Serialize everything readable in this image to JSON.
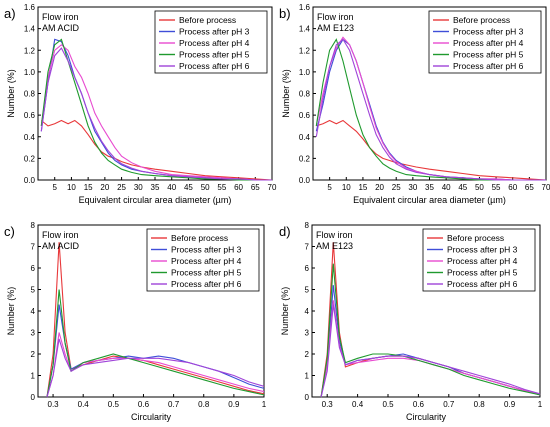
{
  "figure": {
    "panel_letters": [
      "a)",
      "b)",
      "c)",
      "d)"
    ]
  },
  "chart_data": [
    {
      "panel": "a)",
      "type": "line",
      "annotation": [
        "Flow iron",
        "AM ACID"
      ],
      "xlabel": "Equivalent circular area diameter (µm)",
      "ylabel": "Number (%)",
      "xlim": [
        0,
        70
      ],
      "ylim": [
        0,
        1.6
      ],
      "xticks": [
        5,
        10,
        15,
        20,
        25,
        30,
        35,
        40,
        45,
        50,
        55,
        60,
        65,
        70
      ],
      "yticks": [
        0.0,
        0.2,
        0.4,
        0.6,
        0.8,
        1.0,
        1.2,
        1.4,
        1.6
      ],
      "legend_position": "top-right",
      "x": [
        1,
        3,
        5,
        7,
        9,
        11,
        13,
        15,
        17,
        19,
        21,
        23,
        25,
        28,
        31,
        35,
        40,
        45,
        50,
        55,
        60,
        65,
        70
      ],
      "series": [
        {
          "name": "Before process",
          "color": "#e8383a",
          "values": [
            0.55,
            0.5,
            0.52,
            0.55,
            0.52,
            0.55,
            0.5,
            0.42,
            0.33,
            0.26,
            0.22,
            0.2,
            0.17,
            0.14,
            0.12,
            0.1,
            0.08,
            0.06,
            0.04,
            0.03,
            0.02,
            0.01,
            0.0
          ]
        },
        {
          "name": "Process after pH 3",
          "color": "#3f4ed8",
          "values": [
            0.45,
            0.9,
            1.3,
            1.28,
            1.15,
            0.95,
            0.8,
            0.62,
            0.45,
            0.35,
            0.25,
            0.18,
            0.14,
            0.1,
            0.08,
            0.06,
            0.04,
            0.03,
            0.02,
            0.01,
            0.01,
            0.0,
            0.0
          ]
        },
        {
          "name": "Process after pH 4",
          "color": "#e84bd0",
          "values": [
            0.5,
            0.95,
            1.2,
            1.25,
            1.2,
            1.05,
            0.95,
            0.8,
            0.62,
            0.5,
            0.4,
            0.3,
            0.22,
            0.16,
            0.12,
            0.08,
            0.05,
            0.04,
            0.03,
            0.02,
            0.01,
            0.0,
            0.0
          ]
        },
        {
          "name": "Process after pH 5",
          "color": "#1f9a2e",
          "values": [
            0.5,
            1.0,
            1.25,
            1.3,
            1.1,
            0.9,
            0.7,
            0.5,
            0.35,
            0.25,
            0.18,
            0.14,
            0.1,
            0.07,
            0.05,
            0.04,
            0.03,
            0.02,
            0.01,
            0.01,
            0.0,
            0.0,
            0.0
          ]
        },
        {
          "name": "Process after pH 6",
          "color": "#a044d9",
          "values": [
            0.45,
            0.9,
            1.15,
            1.22,
            1.1,
            0.95,
            0.8,
            0.62,
            0.48,
            0.36,
            0.27,
            0.2,
            0.15,
            0.11,
            0.08,
            0.06,
            0.04,
            0.03,
            0.02,
            0.01,
            0.01,
            0.0,
            0.0
          ]
        }
      ]
    },
    {
      "panel": "b)",
      "type": "line",
      "annotation": [
        "Flow iron",
        "AM E123"
      ],
      "xlabel": "Equivalent circular area diameter (µm)",
      "ylabel": "Number (%)",
      "xlim": [
        0,
        70
      ],
      "ylim": [
        0,
        1.6
      ],
      "xticks": [
        5,
        10,
        15,
        20,
        25,
        30,
        35,
        40,
        45,
        50,
        55,
        60,
        65,
        70
      ],
      "yticks": [
        0.0,
        0.2,
        0.4,
        0.6,
        0.8,
        1.0,
        1.2,
        1.4,
        1.6
      ],
      "legend_position": "top-right",
      "x": [
        1,
        3,
        5,
        7,
        9,
        11,
        13,
        15,
        17,
        19,
        21,
        23,
        25,
        28,
        31,
        35,
        40,
        45,
        50,
        55,
        60,
        65,
        70
      ],
      "series": [
        {
          "name": "Before process",
          "color": "#e8383a",
          "values": [
            0.5,
            0.52,
            0.55,
            0.52,
            0.55,
            0.5,
            0.45,
            0.38,
            0.3,
            0.24,
            0.2,
            0.18,
            0.16,
            0.14,
            0.12,
            0.1,
            0.08,
            0.06,
            0.04,
            0.03,
            0.02,
            0.01,
            0.0
          ]
        },
        {
          "name": "Process after pH 3",
          "color": "#3f4ed8",
          "values": [
            0.45,
            0.7,
            1.0,
            1.2,
            1.3,
            1.25,
            1.1,
            0.9,
            0.7,
            0.5,
            0.35,
            0.25,
            0.18,
            0.12,
            0.08,
            0.05,
            0.03,
            0.02,
            0.01,
            0.01,
            0.0,
            0.0,
            0.0
          ]
        },
        {
          "name": "Process after pH 4",
          "color": "#e84bd0",
          "values": [
            0.5,
            0.8,
            1.05,
            1.22,
            1.32,
            1.25,
            1.1,
            0.9,
            0.68,
            0.48,
            0.34,
            0.24,
            0.17,
            0.11,
            0.08,
            0.05,
            0.03,
            0.02,
            0.01,
            0.01,
            0.0,
            0.0,
            0.0
          ]
        },
        {
          "name": "Process after pH 5",
          "color": "#1f9a2e",
          "values": [
            0.5,
            0.9,
            1.2,
            1.3,
            1.1,
            0.85,
            0.6,
            0.42,
            0.3,
            0.22,
            0.15,
            0.11,
            0.08,
            0.05,
            0.04,
            0.03,
            0.02,
            0.01,
            0.0,
            0.0,
            0.0,
            0.0,
            0.0
          ]
        },
        {
          "name": "Process after pH 6",
          "color": "#a044d9",
          "values": [
            0.4,
            0.75,
            1.05,
            1.25,
            1.3,
            1.2,
            1.0,
            0.8,
            0.6,
            0.42,
            0.3,
            0.21,
            0.15,
            0.1,
            0.07,
            0.05,
            0.03,
            0.02,
            0.01,
            0.0,
            0.0,
            0.0,
            0.0
          ]
        }
      ]
    },
    {
      "panel": "c)",
      "type": "line",
      "annotation": [
        "Flow iron",
        "AM ACID"
      ],
      "xlabel": "Circularity",
      "ylabel": "Number (%)",
      "xlim": [
        0.25,
        1.0
      ],
      "ylim": [
        0,
        8
      ],
      "xticks": [
        0.3,
        0.4,
        0.5,
        0.6,
        0.7,
        0.8,
        0.9,
        1.0
      ],
      "yticks": [
        0,
        1,
        2,
        3,
        4,
        5,
        6,
        7,
        8
      ],
      "legend_position": "top-right",
      "x": [
        0.28,
        0.3,
        0.32,
        0.34,
        0.36,
        0.4,
        0.45,
        0.5,
        0.55,
        0.6,
        0.65,
        0.7,
        0.75,
        0.8,
        0.85,
        0.9,
        0.95,
        1.0
      ],
      "series": [
        {
          "name": "Before process",
          "color": "#e8383a",
          "values": [
            0.0,
            2.0,
            7.2,
            3.0,
            1.3,
            1.5,
            1.7,
            1.9,
            1.8,
            1.7,
            1.5,
            1.3,
            1.1,
            0.9,
            0.7,
            0.5,
            0.3,
            0.15
          ]
        },
        {
          "name": "Process after pH 3",
          "color": "#3f4ed8",
          "values": [
            0.0,
            1.5,
            4.3,
            2.5,
            1.3,
            1.6,
            1.7,
            1.8,
            1.9,
            1.8,
            1.9,
            1.8,
            1.6,
            1.4,
            1.2,
            0.9,
            0.6,
            0.4
          ]
        },
        {
          "name": "Process after pH 4",
          "color": "#e84bd0",
          "values": [
            0.0,
            1.0,
            3.0,
            2.0,
            1.2,
            1.6,
            1.7,
            1.8,
            1.8,
            1.7,
            1.6,
            1.4,
            1.2,
            1.0,
            0.8,
            0.6,
            0.4,
            0.25
          ]
        },
        {
          "name": "Process after pH 5",
          "color": "#1f9a2e",
          "values": [
            0.0,
            1.5,
            5.0,
            2.5,
            1.2,
            1.6,
            1.8,
            2.0,
            1.8,
            1.6,
            1.4,
            1.2,
            1.0,
            0.8,
            0.6,
            0.4,
            0.25,
            0.1
          ]
        },
        {
          "name": "Process after pH 6",
          "color": "#a044d9",
          "values": [
            0.0,
            1.0,
            2.7,
            1.8,
            1.2,
            1.5,
            1.6,
            1.7,
            1.8,
            1.8,
            1.8,
            1.7,
            1.6,
            1.4,
            1.2,
            1.0,
            0.7,
            0.5
          ]
        }
      ]
    },
    {
      "panel": "d)",
      "type": "line",
      "annotation": [
        "Flow iron",
        "AM E123"
      ],
      "xlabel": "Circularity",
      "ylabel": "Number (%)",
      "xlim": [
        0.25,
        1.0
      ],
      "ylim": [
        0,
        8
      ],
      "xticks": [
        0.3,
        0.4,
        0.5,
        0.6,
        0.7,
        0.8,
        0.9,
        1.0
      ],
      "yticks": [
        0,
        1,
        2,
        3,
        4,
        5,
        6,
        7,
        8
      ],
      "legend_position": "top-right",
      "x": [
        0.28,
        0.3,
        0.32,
        0.34,
        0.36,
        0.4,
        0.45,
        0.5,
        0.55,
        0.6,
        0.65,
        0.7,
        0.75,
        0.8,
        0.85,
        0.9,
        0.95,
        1.0
      ],
      "series": [
        {
          "name": "Before process",
          "color": "#e8383a",
          "values": [
            0.0,
            2.0,
            7.2,
            3.0,
            1.4,
            1.6,
            1.8,
            1.9,
            1.9,
            1.8,
            1.6,
            1.4,
            1.1,
            0.9,
            0.7,
            0.5,
            0.3,
            0.1
          ]
        },
        {
          "name": "Process after pH 3",
          "color": "#3f4ed8",
          "values": [
            0.0,
            1.5,
            5.2,
            2.6,
            1.5,
            1.7,
            1.8,
            1.9,
            2.0,
            1.8,
            1.6,
            1.4,
            1.1,
            0.9,
            0.7,
            0.5,
            0.3,
            0.1
          ]
        },
        {
          "name": "Process after pH 4",
          "color": "#e84bd0",
          "values": [
            0.0,
            1.5,
            4.5,
            2.4,
            1.5,
            1.6,
            1.7,
            1.8,
            1.8,
            1.7,
            1.5,
            1.3,
            1.1,
            0.9,
            0.7,
            0.5,
            0.3,
            0.1
          ]
        },
        {
          "name": "Process after pH 5",
          "color": "#1f9a2e",
          "values": [
            0.0,
            1.8,
            6.2,
            2.8,
            1.6,
            1.8,
            2.0,
            2.0,
            1.9,
            1.7,
            1.5,
            1.3,
            1.0,
            0.8,
            0.6,
            0.4,
            0.25,
            0.1
          ]
        },
        {
          "name": "Process after pH 6",
          "color": "#a044d9",
          "values": [
            0.0,
            1.2,
            4.3,
            2.3,
            1.5,
            1.7,
            1.8,
            1.9,
            1.9,
            1.8,
            1.6,
            1.4,
            1.2,
            1.0,
            0.8,
            0.6,
            0.35,
            0.15
          ]
        }
      ]
    }
  ]
}
